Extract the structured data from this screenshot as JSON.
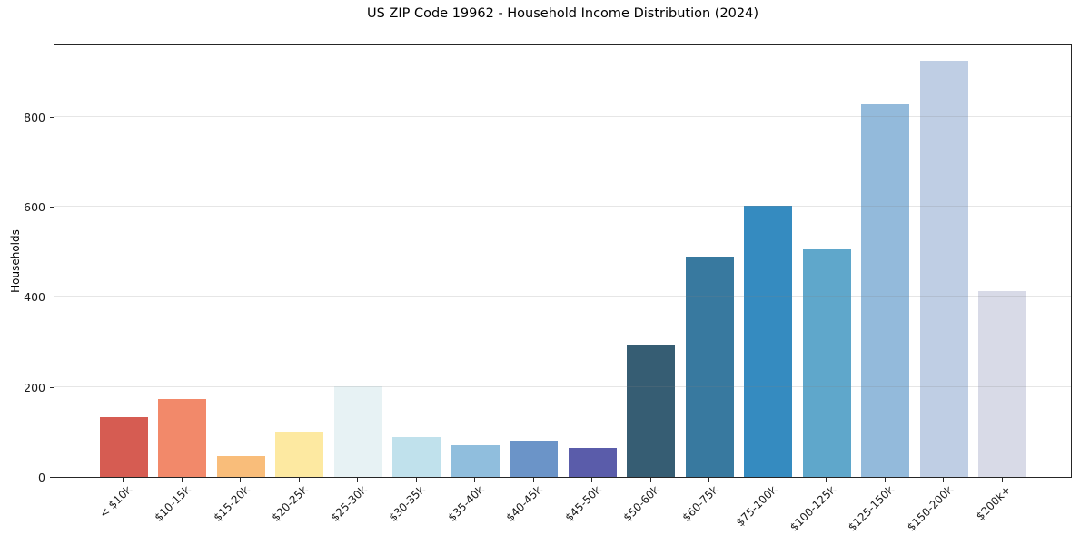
{
  "figure": {
    "background_color": "#ffffff",
    "spine_color": "#262626",
    "grid_color": "#e6e6e6"
  },
  "chart_data": {
    "type": "bar",
    "title": "US ZIP Code 19962 - Household Income Distribution (2024)",
    "xlabel": "",
    "ylabel": "Households",
    "categories": [
      "< $10k",
      "$10-15k",
      "$15-20k",
      "$20-25k",
      "$25-30k",
      "$30-35k",
      "$35-40k",
      "$40-45k",
      "$45-50k",
      "$50-60k",
      "$60-75k",
      "$75-100k",
      "$100-125k",
      "$125-150k",
      "$150-200k",
      "$200k+"
    ],
    "values": [
      133,
      174,
      46,
      101,
      202,
      88,
      70,
      81,
      65,
      295,
      490,
      603,
      505,
      829,
      925,
      414
    ],
    "bar_colors": [
      "#d65c52",
      "#f2896a",
      "#f9bd7a",
      "#fde9a1",
      "#e7f2f4",
      "#c0e1ec",
      "#90bedd",
      "#6b94c8",
      "#5a5caa",
      "#365d73",
      "#38799f",
      "#358bc0",
      "#5fa7cb",
      "#93badb",
      "#bfcee4",
      "#d8dae7"
    ],
    "yticks": [
      0,
      200,
      400,
      600,
      800
    ],
    "ylim": [
      0,
      963
    ],
    "grid": "horizontal-light",
    "legend": "none",
    "x_tick_rotation_deg": 45
  }
}
